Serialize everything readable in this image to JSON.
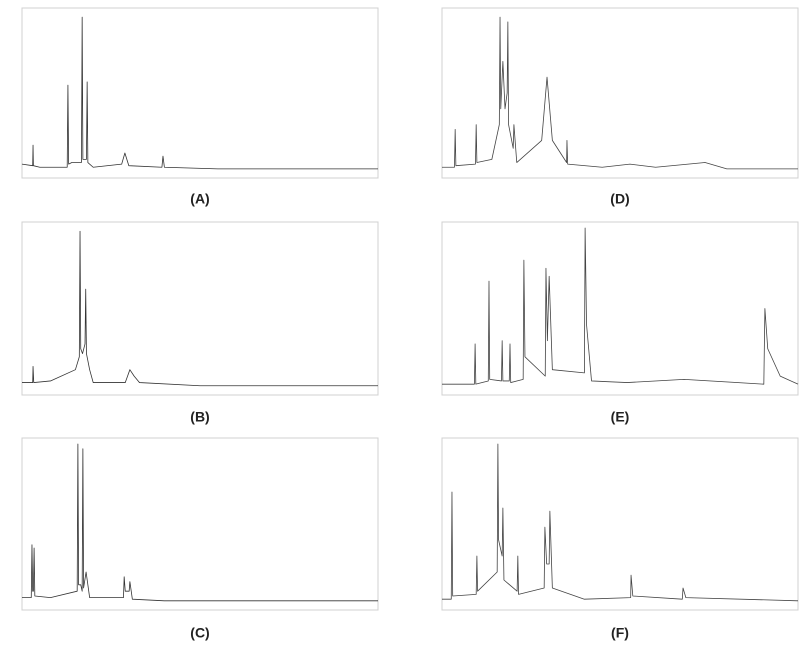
{
  "chart_data": [
    {
      "type": "line",
      "title": "(A)",
      "color": "#333333",
      "xlim": [
        0,
        100
      ],
      "ylim": [
        0,
        100
      ],
      "x": [
        0,
        3.0,
        3.1,
        3.2,
        5,
        12.7,
        12.9,
        13.1,
        14,
        16.7,
        16.9,
        17.1,
        18.1,
        18.3,
        18.5,
        20,
        28,
        28.9,
        30,
        39.3,
        39.6,
        40,
        55,
        100
      ],
      "values": [
        5,
        4,
        17,
        4,
        3,
        3,
        55,
        5,
        6,
        6,
        98,
        8,
        8,
        57,
        6,
        3,
        5,
        12,
        4,
        3,
        10,
        3,
        2,
        2
      ]
    },
    {
      "type": "line",
      "title": "(B)",
      "color": "#333333",
      "xlim": [
        0,
        100
      ],
      "ylim": [
        0,
        100
      ],
      "x": [
        0,
        3,
        3.1,
        3.3,
        8,
        15,
        16.1,
        16.3,
        16.5,
        17,
        17.7,
        17.9,
        18.1,
        19,
        20,
        29,
        30.3,
        31.5,
        33,
        50,
        100
      ],
      "values": [
        4,
        4,
        14,
        4,
        5,
        12,
        20,
        98,
        25,
        22,
        28,
        62,
        22,
        12,
        4,
        4,
        12,
        8,
        4,
        2,
        2
      ]
    },
    {
      "type": "line",
      "title": "(C)",
      "color": "#333333",
      "xlim": [
        0,
        100
      ],
      "ylim": [
        0,
        100
      ],
      "x": [
        0,
        2.6,
        2.8,
        3.0,
        3.2,
        3.4,
        3.6,
        8,
        15.5,
        15.7,
        15.9,
        16.5,
        16.9,
        17.1,
        17.3,
        18,
        19,
        28.5,
        28.7,
        29,
        30.1,
        30.3,
        31,
        40,
        100
      ],
      "values": [
        4,
        4,
        37,
        8,
        8,
        35,
        5,
        4,
        8,
        100,
        12,
        12,
        8,
        97,
        10,
        20,
        4,
        4,
        17,
        8,
        8,
        14,
        3,
        2,
        2
      ]
    },
    {
      "type": "line",
      "title": "(D)",
      "color": "#444444",
      "xlim": [
        0,
        100
      ],
      "ylim": [
        0,
        100
      ],
      "x": [
        0,
        3.5,
        3.7,
        3.9,
        9.4,
        9.6,
        9.8,
        14,
        16.1,
        16.3,
        16.5,
        17.1,
        17.7,
        18.3,
        18.5,
        18.7,
        20.0,
        20.2,
        21,
        28,
        29.5,
        31,
        35,
        35.1,
        35.3,
        45,
        52.8,
        60,
        73.9,
        80,
        100
      ],
      "values": [
        3,
        3,
        27,
        4,
        5,
        30,
        6,
        8,
        30,
        98,
        40,
        70,
        40,
        50,
        95,
        30,
        15,
        30,
        6,
        20,
        60,
        20,
        6,
        20,
        5,
        3,
        5,
        3,
        6,
        2,
        2
      ]
    },
    {
      "type": "line",
      "title": "(E)",
      "color": "#444444",
      "xlim": [
        0,
        100
      ],
      "ylim": [
        0,
        100
      ],
      "x": [
        0,
        9.1,
        9.3,
        9.5,
        13,
        13.2,
        13.4,
        16.7,
        16.9,
        17.1,
        18.9,
        19.1,
        19.3,
        22.8,
        23,
        23.3,
        29,
        29.2,
        29.6,
        30.1,
        31,
        40,
        40.2,
        40.6,
        42,
        52,
        68,
        90.4,
        90.7,
        91.5,
        95,
        100
      ],
      "values": [
        3,
        3,
        28,
        3,
        5,
        67,
        6,
        5,
        30,
        5,
        5,
        28,
        4,
        6,
        80,
        20,
        8,
        75,
        30,
        70,
        12,
        10,
        100,
        40,
        5,
        4,
        6,
        3,
        50,
        25,
        8,
        3
      ]
    },
    {
      "type": "line",
      "title": "(F)",
      "color": "#444444",
      "xlim": [
        0,
        100
      ],
      "ylim": [
        0,
        100
      ],
      "x": [
        0,
        2.6,
        2.8,
        3,
        9.6,
        9.8,
        10,
        15.5,
        15.7,
        15.9,
        16.9,
        17.1,
        17.4,
        21.1,
        21.3,
        21.5,
        28.7,
        28.9,
        29.4,
        30.1,
        30.3,
        31,
        40,
        53,
        53.1,
        53.6,
        67.5,
        67.7,
        68.5,
        100
      ],
      "values": [
        3,
        3,
        70,
        5,
        6,
        30,
        8,
        20,
        100,
        40,
        30,
        60,
        15,
        8,
        30,
        6,
        10,
        48,
        25,
        25,
        58,
        10,
        3,
        4,
        18,
        5,
        3,
        10,
        4,
        2
      ]
    }
  ]
}
